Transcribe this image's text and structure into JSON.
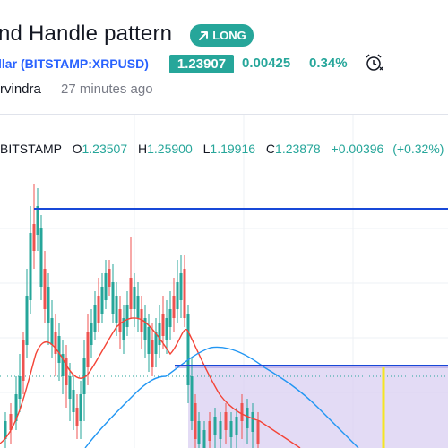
{
  "header": {
    "title": "nd Handle pattern",
    "badge": "LONG",
    "symbol_prefix": "llar",
    "symbol": "(BITSTAMP:XRPUSD)",
    "price": "1.23907",
    "change": "0.00425",
    "change_pct": "0.34%",
    "author": "rvindra",
    "time_ago": "27 minutes ago",
    "icons": {
      "badge": "arrow-up-right-icon",
      "alert": "alarm-clock-icon"
    }
  },
  "legend": {
    "source": "BITSTAMP",
    "open_label": "O",
    "open": "1.23507",
    "high_label": "H",
    "high": "1.25900",
    "low_label": "L",
    "low": "1.19916",
    "close_label": "C",
    "close": "1.23878",
    "change": "+0.00396",
    "change_pct": "(+0.32%)"
  },
  "colors": {
    "accent_green": "#26a69a",
    "accent_red": "#ef5350",
    "symbol_blue": "#2962ff",
    "ma_red": "#f44336",
    "ma_blue": "#2196f3",
    "level_line": "#1848d8",
    "projection_fill": "#d9cff2",
    "marker_yellow": "#f5e623"
  }
}
